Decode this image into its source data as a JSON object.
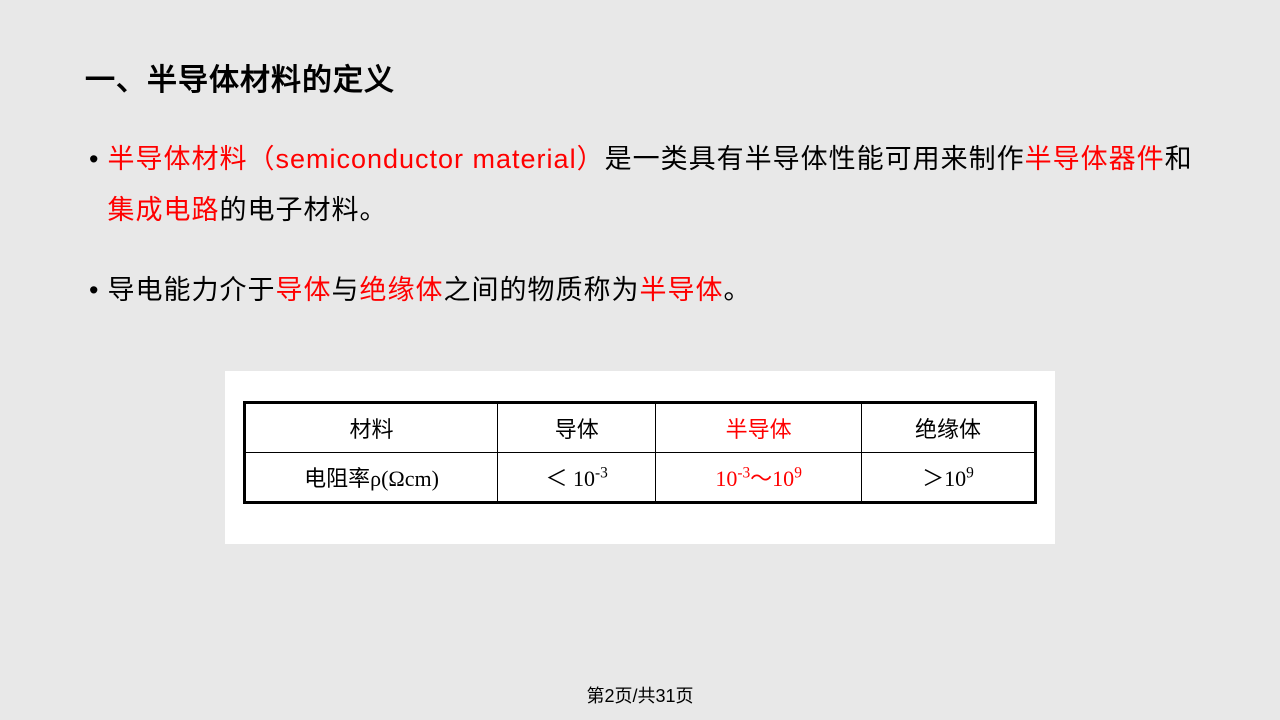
{
  "heading": "一、半导体材料的定义",
  "bullets": [
    {
      "segments": [
        {
          "text": "半导体材料（semiconductor material）",
          "red": true
        },
        {
          "text": "是一类具有半导体性能可用来制作",
          "red": false
        },
        {
          "text": "半导体器件",
          "red": true
        },
        {
          "text": "和",
          "red": false
        },
        {
          "text": "集成电路",
          "red": true
        },
        {
          "text": "的电子材料。",
          "red": false
        }
      ]
    },
    {
      "segments": [
        {
          "text": "导电能力介于",
          "red": false
        },
        {
          "text": "导体",
          "red": true
        },
        {
          "text": "与",
          "red": false
        },
        {
          "text": "绝缘体",
          "red": true
        },
        {
          "text": "之间的物质称为",
          "red": false
        },
        {
          "text": "半导体",
          "red": true
        },
        {
          "text": "。",
          "red": false
        }
      ]
    }
  ],
  "table": {
    "background_color": "#ffffff",
    "border_color": "#000000",
    "rows": [
      [
        {
          "html": "材料",
          "red": false
        },
        {
          "html": "导体",
          "red": false
        },
        {
          "html": "半导体",
          "red": true
        },
        {
          "html": "绝缘体",
          "red": false
        }
      ],
      [
        {
          "html": "电阻率ρ(Ωcm)",
          "red": false
        },
        {
          "html": "＜ 10<sup>-3</sup>",
          "red": false
        },
        {
          "html": "10<sup>-3</sup>～10<sup>9</sup>",
          "red": true
        },
        {
          "html": "＞10<sup>9</sup>",
          "red": false
        }
      ]
    ]
  },
  "page_number": "第2页/共31页"
}
